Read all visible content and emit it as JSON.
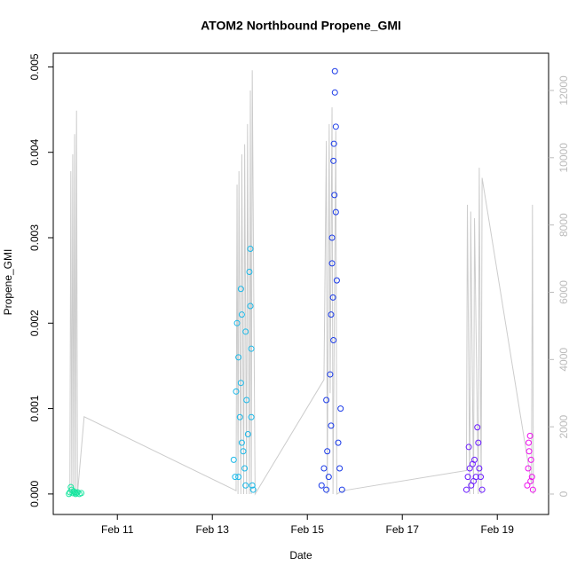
{
  "chart_data": {
    "type": "scatter",
    "title": "ATOM2 Northbound Propene_GMI",
    "x_label": "Date",
    "y_label": "Propene_GMI",
    "xlim": [
      9.65,
      20.08
    ],
    "ylim": [
      -0.00024,
      0.00516
    ],
    "y2lim": [
      -607,
      13107
    ],
    "xticks": [
      {
        "value": 11,
        "label": "Feb 11"
      },
      {
        "value": 13,
        "label": "Feb 13"
      },
      {
        "value": 15,
        "label": "Feb 15"
      },
      {
        "value": 17,
        "label": "Feb 17"
      },
      {
        "value": 19,
        "label": "Feb 19"
      }
    ],
    "yticks": [
      {
        "value": 0,
        "label": "0.000"
      },
      {
        "value": 0.001,
        "label": "0.001"
      },
      {
        "value": 0.002,
        "label": "0.002"
      },
      {
        "value": 0.003,
        "label": "0.003"
      },
      {
        "value": 0.004,
        "label": "0.004"
      },
      {
        "value": 0.005,
        "label": "0.005"
      }
    ],
    "y2ticks": [
      0,
      2000,
      4000,
      6000,
      8000,
      10000,
      12000
    ],
    "series": [
      {
        "color": "#cccccc",
        "style": "line",
        "axis": "y2",
        "x": [
          10.0,
          10.02,
          10.04,
          10.06,
          10.08,
          10.1,
          10.12,
          10.14,
          10.16,
          10.3,
          13.5,
          13.52,
          13.54,
          13.56,
          13.6,
          13.62,
          13.66,
          13.68,
          13.72,
          13.74,
          13.78,
          13.8,
          13.82,
          13.84,
          13.9,
          15.35,
          15.4,
          15.42,
          15.46,
          15.48,
          15.52,
          15.54,
          15.6,
          15.62,
          15.75,
          18.35,
          18.37,
          18.42,
          18.44,
          18.5,
          18.52,
          18.6,
          18.62,
          18.66,
          18.68,
          19.72,
          19.74,
          19.76
        ],
        "values": [
          0,
          9600,
          0,
          10100,
          0,
          10700,
          0,
          11400,
          0,
          2300,
          100,
          9200,
          0,
          9600,
          0,
          10100,
          0,
          10400,
          0,
          11000,
          0,
          12000,
          0,
          12600,
          0,
          3400,
          10500,
          0,
          11000,
          3000,
          11500,
          0,
          10800,
          0,
          100,
          700,
          8600,
          0,
          8400,
          0,
          8200,
          0,
          9700,
          0,
          9400,
          300,
          8600,
          0
        ]
      },
      {
        "color": "#19e6a0",
        "style": "points",
        "x": [
          9.98,
          10.0,
          10.02,
          10.04,
          10.06,
          10.08,
          10.1,
          10.12,
          10.14,
          10.16,
          10.2,
          10.24
        ],
        "values": [
          0,
          2e-05,
          8e-05,
          5e-05,
          1e-05,
          3e-05,
          2e-05,
          0,
          1e-05,
          2e-05,
          0,
          1e-05
        ]
      },
      {
        "color": "#1ab8e8",
        "style": "points",
        "x": [
          13.45,
          13.48,
          13.5,
          13.52,
          13.55,
          13.58,
          13.6,
          13.62,
          13.65,
          13.68,
          13.7,
          13.72,
          13.75,
          13.78,
          13.8,
          13.82,
          13.84,
          13.86,
          13.6,
          13.62,
          13.8,
          13.82,
          13.55,
          13.7
        ],
        "values": [
          0.0004,
          0.0002,
          0.0012,
          0.002,
          0.0016,
          0.0009,
          0.0024,
          0.0021,
          0.0005,
          0.0003,
          0.0019,
          0.0011,
          0.0007,
          0.0026,
          0.00287,
          0.0017,
          0.0001,
          5e-05,
          0.0013,
          0.0006,
          0.0022,
          0.0009,
          0.0002,
          0.0001
        ]
      },
      {
        "color": "#1a3ae8",
        "style": "points",
        "x": [
          15.3,
          15.35,
          15.4,
          15.42,
          15.45,
          15.48,
          15.5,
          15.52,
          15.55,
          15.58,
          15.6,
          15.62,
          15.65,
          15.7,
          15.73,
          15.55,
          15.57,
          15.52,
          15.58,
          15.5,
          15.6,
          15.56,
          15.54,
          15.4,
          15.68
        ],
        "values": [
          0.0001,
          0.0003,
          0.0011,
          0.0005,
          0.0002,
          0.0014,
          0.0021,
          0.003,
          0.0039,
          0.00495,
          0.0043,
          0.0025,
          0.0006,
          0.001,
          5e-05,
          0.0018,
          0.0035,
          0.0027,
          0.0047,
          0.0008,
          0.0033,
          0.0041,
          0.0023,
          5e-05,
          0.0003
        ]
      },
      {
        "color": "#6a1aff",
        "style": "points",
        "x": [
          18.35,
          18.38,
          18.4,
          18.42,
          18.45,
          18.48,
          18.5,
          18.52,
          18.55,
          18.58,
          18.6,
          18.62,
          18.65,
          18.68
        ],
        "values": [
          5e-05,
          0.0002,
          0.00055,
          0.0003,
          0.0001,
          0.00035,
          0.00015,
          0.0004,
          0.0002,
          0.00078,
          0.0006,
          0.0003,
          0.0002,
          5e-05
        ]
      },
      {
        "color": "#ee10ee",
        "style": "points",
        "x": [
          19.63,
          19.65,
          19.67,
          19.69,
          19.71,
          19.73,
          19.75,
          19.66,
          19.7
        ],
        "values": [
          0.0001,
          0.0003,
          0.0005,
          0.00068,
          0.0004,
          0.0002,
          5e-05,
          0.0006,
          0.00015
        ]
      }
    ]
  }
}
